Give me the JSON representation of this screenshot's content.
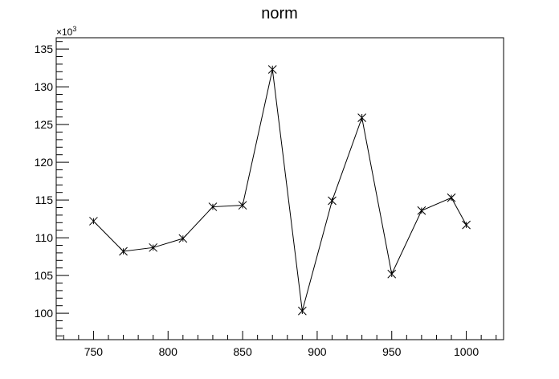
{
  "chart_data": {
    "type": "line",
    "title": "norm",
    "xlabel": "",
    "ylabel": "",
    "y_scale_label": {
      "base": "×10",
      "exponent": "3"
    },
    "xlim": [
      725,
      1025
    ],
    "ylim": [
      96.5,
      136.5
    ],
    "x_ticks": [
      750,
      800,
      850,
      900,
      950,
      1000
    ],
    "x_tick_labels": [
      "750",
      "800",
      "850",
      "900",
      "950",
      "1000"
    ],
    "y_ticks": [
      100,
      105,
      110,
      115,
      120,
      125,
      130,
      135
    ],
    "y_tick_labels": [
      "100",
      "105",
      "110",
      "115",
      "120",
      "125",
      "130",
      "135"
    ],
    "grid": false,
    "series": [
      {
        "x": [
          750,
          770,
          790,
          810,
          830,
          850,
          870,
          890,
          910,
          930,
          950,
          970,
          990,
          1000
        ],
        "values": [
          112.2,
          108.2,
          108.7,
          109.9,
          114.1,
          114.3,
          132.3,
          100.3,
          114.9,
          125.9,
          105.2,
          113.6,
          115.3,
          111.7
        ],
        "errors": [
          0.4,
          0.4,
          0.4,
          0.4,
          0.4,
          0.4,
          0.5,
          0.4,
          0.4,
          0.5,
          0.4,
          0.4,
          0.4,
          0.4
        ]
      }
    ],
    "colors": {
      "line": "#000000",
      "frame": "#000000",
      "background": "#ffffff"
    }
  }
}
